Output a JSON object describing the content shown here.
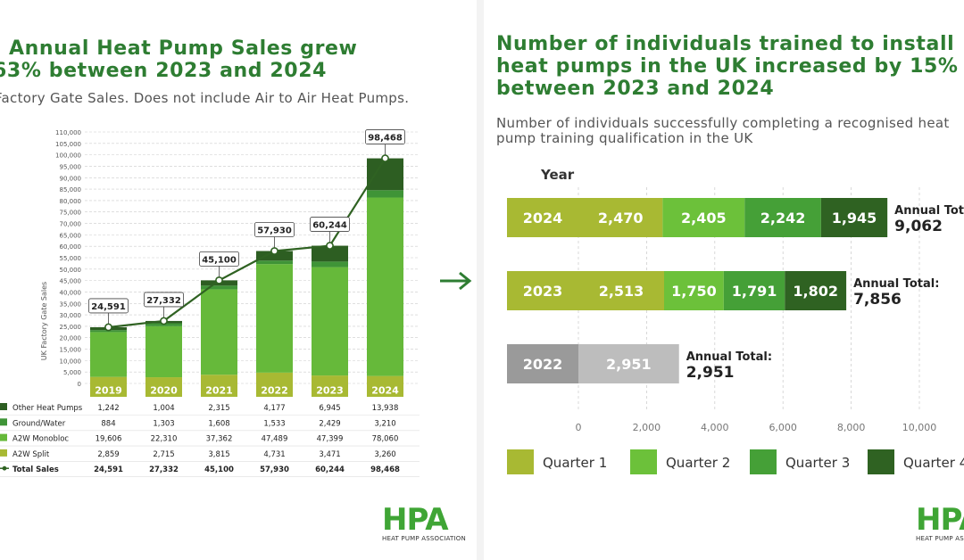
{
  "left": {
    "title_line1": "Annual Heat Pump Sales grew",
    "title_line2": "63% between 2023 and 2024",
    "subtitle": "Factory Gate Sales. Does not include Air to Air Heat Pumps.",
    "logo_mark": "HPA",
    "logo_text": "HEAT PUMP ASSOCIATION"
  },
  "right": {
    "title_line1": "Number of individuals trained to install",
    "title_line2": "heat pumps in the UK increased by 15%",
    "title_line3": "between 2023 and 2024",
    "subtitle_line1": "Number of individuals successfully completing a recognised heat",
    "subtitle_line2": "pump training qualification in the UK",
    "logo_mark": "HPA",
    "logo_text": "HEAT PUMP ASSOCIATION"
  },
  "colors": {
    "title": "#2e7d32",
    "q1": "#a8b933",
    "q2": "#6cc13a",
    "q3": "#45a037",
    "q4": "#2f6222",
    "year_2022": "#9a9a9a",
    "q1_2022": "#bdbdbd"
  },
  "chart_data": [
    {
      "type": "bar",
      "stacked": true,
      "categories": [
        "2019",
        "2020",
        "2021",
        "2022",
        "2023",
        "2024"
      ],
      "ylabel": "UK Factory Gate Sales",
      "ylim": [
        0,
        110000
      ],
      "yticks": [
        "0",
        "5,000",
        "10,000",
        "15,000",
        "20,000",
        "25,000",
        "30,000",
        "35,000",
        "40,000",
        "45,000",
        "50,000",
        "55,000",
        "60,000",
        "65,000",
        "70,000",
        "75,000",
        "80,000",
        "85,000",
        "90,000",
        "95,000",
        "100,000",
        "105,000",
        "110,000"
      ],
      "grid": true,
      "series": [
        {
          "name": "A2W Split",
          "values": [
            2859,
            2715,
            3815,
            4731,
            3471,
            3260
          ],
          "color": "#a8b933"
        },
        {
          "name": "A2W Monobloc",
          "values": [
            19606,
            22310,
            37362,
            47489,
            47399,
            78060
          ],
          "color": "#66b93a"
        },
        {
          "name": "Ground/Water",
          "values": [
            884,
            1303,
            1608,
            1533,
            2429,
            3210
          ],
          "color": "#3f9437"
        },
        {
          "name": "Other Heat Pumps",
          "values": [
            1242,
            1004,
            2315,
            4177,
            6945,
            13938
          ],
          "color": "#2d5e22"
        }
      ],
      "totals": {
        "name": "Total Sales",
        "values": [
          24591,
          27332,
          45100,
          57930,
          60244,
          98468
        ],
        "labels": [
          "24,591",
          "27,332",
          "45,100",
          "57,930",
          "60,244",
          "98,468"
        ]
      },
      "table": {
        "legend_order": [
          "Other Heat Pumps",
          "Ground/Water",
          "A2W Monobloc",
          "A2W Split",
          "Total Sales"
        ],
        "rows": [
          [
            "1,242",
            "1,004",
            "2,315",
            "4,177",
            "6,945",
            "13,938"
          ],
          [
            "884",
            "1,303",
            "1,608",
            "1,533",
            "2,429",
            "3,210"
          ],
          [
            "19,606",
            "22,310",
            "37,362",
            "47,489",
            "47,399",
            "78,060"
          ],
          [
            "2,859",
            "2,715",
            "3,815",
            "4,731",
            "3,471",
            "3,260"
          ],
          [
            "24,591",
            "27,332",
            "45,100",
            "57,930",
            "60,244",
            "98,468"
          ]
        ]
      }
    },
    {
      "type": "bar",
      "orientation": "horizontal",
      "stacked": true,
      "y_header": "Year",
      "categories": [
        "2024",
        "2023",
        "2022"
      ],
      "xlim": [
        0,
        10000
      ],
      "xticks": [
        "0",
        "2,000",
        "4,000",
        "6,000",
        "8,000",
        "10,000"
      ],
      "series": [
        {
          "name": "Quarter 1",
          "values": [
            2470,
            2513,
            2951
          ],
          "labels": [
            "2,470",
            "2,513",
            "2,951"
          ]
        },
        {
          "name": "Quarter 2",
          "values": [
            2405,
            1750,
            0
          ],
          "labels": [
            "2,405",
            "1,750",
            ""
          ]
        },
        {
          "name": "Quarter 3",
          "values": [
            2242,
            1791,
            0
          ],
          "labels": [
            "2,242",
            "1,791",
            ""
          ]
        },
        {
          "name": "Quarter 4",
          "values": [
            1945,
            1802,
            0
          ],
          "labels": [
            "1,945",
            "1,802",
            ""
          ]
        }
      ],
      "annual_total_label": "Annual Total:",
      "annual_totals": [
        9062,
        7856,
        2951
      ],
      "annual_total_labels": [
        "9,062",
        "7,856",
        "2,951"
      ]
    }
  ]
}
